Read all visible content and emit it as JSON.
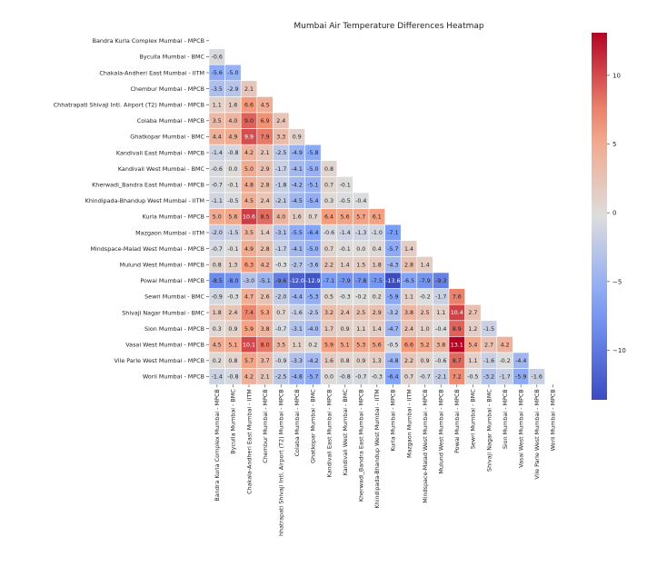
{
  "chart_data": {
    "type": "heatmap",
    "title": "Mumbai Air Temperature Differences Heatmap",
    "colormap": "coolwarm",
    "vmin": -13.6,
    "vmax": 13.1,
    "colorbar_ticks": [
      10,
      5,
      0,
      -5,
      -10
    ],
    "labels": [
      "Bandra Kurla Complex  Mumbai - MPCB",
      "Byculla  Mumbai - BMC",
      "Chakala-Andheri East  Mumbai - IITM",
      "Chembur  Mumbai - MPCB",
      "Chhatrapati Shivaji Intl. Airport (T2)  Mumbai - MPCB",
      "Colaba  Mumbai - MPCB",
      "Ghatkopar  Mumbai - BMC",
      "Kandivali East  Mumbai - MPCB",
      "Kandivali West  Mumbai - BMC",
      "Kherwadi_Bandra East  Mumbai - MPCB",
      "Khindipada-Bhandup West  Mumbai - IITM",
      "Kurla  Mumbai - MPCB",
      "Mazgaon  Mumbai - IITM",
      "Mindspace-Malad West  Mumbai - MPCB",
      "Mulund West  Mumbai - MPCB",
      "Powai  Mumbai - MPCB",
      "Sewri  Mumbai - BMC",
      "Shivaji Nagar  Mumbai - BMC",
      "Sion  Mumbai - MPCB",
      "Vasai West  Mumbai - MPCB",
      "Vile Parle West  Mumbai - MPCB",
      "Worli  Mumbai - MPCB"
    ],
    "x_labels": [
      "Bandra Kurla Complex  Mumbai - MPCB",
      "Byculla  Mumbai - BMC",
      "Chakala-Andheri East  Mumbai - IITM",
      "Chembur  Mumbai - MPCB",
      "hhatrapati Shivaji Intl. Airport (T2)  Mumbai - MPCB",
      "Colaba  Mumbai - MPCB",
      "Ghatkopar  Mumbai - BMC",
      "Kandivali East  Mumbai - MPCB",
      "Kandivali West  Mumbai - BMC",
      "Kherwadi_Bandra East  Mumbai - MPCB",
      "Khindipada-Bhandup West  Mumbai - IITM",
      "Kurla  Mumbai - MPCB",
      "Mazgaon  Mumbai - IITM",
      "Mindspace-Malad West  Mumbai - MPCB",
      "Mulund West  Mumbai - MPCB",
      "Powai  Mumbai - MPCB",
      "Sewri  Mumbai - BMC",
      "Shivaji Nagar  Mumbai - BMC",
      "Sion  Mumbai - MPCB",
      "Vasai West  Mumbai - MPCB",
      "Vile Parle West  Mumbai - MPCB",
      "Worli  Mumbai - MPCB"
    ],
    "values": [
      [],
      [
        -0.6
      ],
      [
        -5.6,
        -5.0
      ],
      [
        -3.5,
        -2.9,
        2.1
      ],
      [
        1.1,
        1.6,
        6.6,
        4.5
      ],
      [
        3.5,
        4.0,
        9.0,
        6.9,
        2.4
      ],
      [
        4.4,
        4.9,
        9.9,
        7.9,
        3.3,
        0.9
      ],
      [
        -1.4,
        -0.8,
        4.2,
        2.1,
        -2.5,
        -4.9,
        -5.8
      ],
      [
        -0.6,
        -0.0,
        5.0,
        2.9,
        -1.7,
        -4.1,
        -5.0,
        0.8
      ],
      [
        -0.7,
        -0.1,
        4.8,
        2.8,
        -1.8,
        -4.2,
        -5.1,
        0.7,
        -0.1
      ],
      [
        -1.1,
        -0.5,
        4.5,
        2.4,
        -2.1,
        -4.5,
        -5.4,
        0.3,
        -0.5,
        -0.4
      ],
      [
        5.0,
        5.6,
        10.6,
        8.5,
        4.0,
        1.6,
        0.7,
        6.4,
        5.6,
        5.7,
        6.1
      ],
      [
        -2.0,
        -1.5,
        3.5,
        1.4,
        -3.1,
        -5.5,
        -6.4,
        -0.6,
        -1.4,
        -1.3,
        -1.0,
        -7.1
      ],
      [
        -0.7,
        -0.1,
        4.9,
        2.8,
        -1.7,
        -4.1,
        -5.0,
        0.7,
        -0.1,
        0.0,
        0.4,
        -5.7,
        1.4
      ],
      [
        0.8,
        1.3,
        6.3,
        4.2,
        -0.3,
        -2.7,
        -3.6,
        2.2,
        1.4,
        1.5,
        1.8,
        -4.3,
        2.8,
        1.4
      ],
      [
        -8.5,
        -8.0,
        -3.0,
        -5.1,
        -9.6,
        -12.0,
        -12.9,
        -7.1,
        -7.9,
        -7.8,
        -7.5,
        -13.6,
        -6.5,
        -7.9,
        -9.3
      ],
      [
        -0.9,
        -0.3,
        4.7,
        2.6,
        -2.0,
        -4.4,
        -5.3,
        0.5,
        -0.3,
        -0.2,
        0.2,
        -5.9,
        1.1,
        -0.2,
        -1.7,
        7.6
      ],
      [
        1.8,
        2.4,
        7.4,
        5.3,
        0.7,
        -1.6,
        -2.5,
        3.2,
        2.4,
        2.5,
        2.9,
        -3.2,
        3.8,
        2.5,
        1.1,
        10.4,
        2.7
      ],
      [
        0.3,
        0.9,
        5.9,
        3.8,
        -0.7,
        -3.1,
        -4.0,
        1.7,
        0.9,
        1.1,
        1.4,
        -4.7,
        2.4,
        1.0,
        -0.4,
        8.9,
        1.2,
        -1.5
      ],
      [
        4.5,
        5.1,
        10.1,
        8.0,
        3.5,
        1.1,
        0.2,
        5.9,
        5.1,
        5.3,
        5.6,
        -0.5,
        6.6,
        5.2,
        3.8,
        13.1,
        5.4,
        2.7,
        4.2
      ],
      [
        0.2,
        0.8,
        5.7,
        3.7,
        -0.9,
        -3.3,
        -4.2,
        1.6,
        0.8,
        0.9,
        1.3,
        -4.8,
        2.2,
        0.9,
        -0.6,
        8.7,
        1.1,
        -1.6,
        -0.2,
        -4.4
      ],
      [
        -1.4,
        -0.8,
        4.2,
        2.1,
        -2.5,
        -4.8,
        -5.7,
        0.0,
        -0.8,
        -0.7,
        -0.3,
        -6.4,
        0.7,
        -0.7,
        -2.1,
        7.2,
        -0.5,
        -3.2,
        -1.7,
        -5.9,
        -1.6
      ]
    ]
  }
}
